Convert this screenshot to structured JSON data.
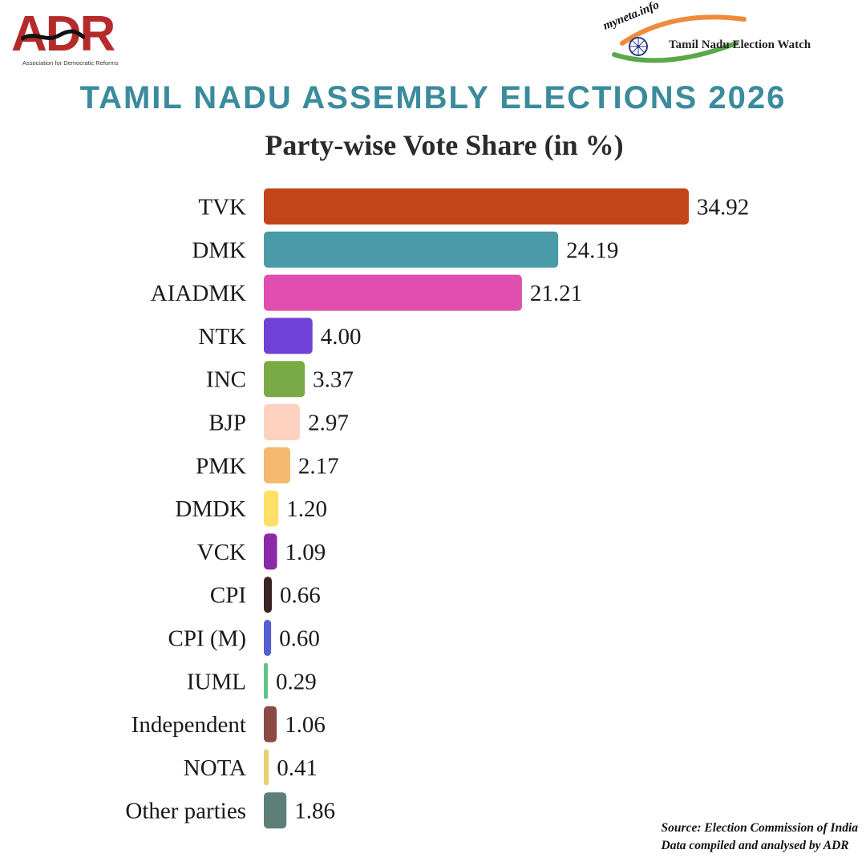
{
  "header": {
    "adr_logo_text": "ADR",
    "adr_tagline": "Association for Democratic Reforms",
    "myneta_text": "myneta.info",
    "election_watch_text": "Tamil Nadu Election Watch"
  },
  "chart_data": {
    "type": "bar",
    "orientation": "horizontal",
    "title": "TAMIL NADU ASSEMBLY ELECTIONS 2026",
    "subtitle": "Party-wise Vote Share (in %)",
    "categories": [
      "TVK",
      "DMK",
      "AIADMK",
      "NTK",
      "INC",
      "BJP",
      "PMK",
      "DMDK",
      "VCK",
      "CPI",
      "CPI (M)",
      "IUML",
      "Independent",
      "NOTA",
      "Other parties"
    ],
    "values": [
      34.92,
      24.19,
      21.21,
      4.0,
      3.37,
      2.97,
      2.17,
      1.2,
      1.09,
      0.66,
      0.6,
      0.29,
      1.06,
      0.41,
      1.86
    ],
    "value_labels": [
      "34.92",
      "24.19",
      "21.21",
      "4.00",
      "3.37",
      "2.97",
      "2.17",
      "1.20",
      "1.09",
      "0.66",
      "0.60",
      "0.29",
      "1.06",
      "0.41",
      "1.86"
    ],
    "colors": [
      "#c14518",
      "#4a9ba8",
      "#e04faf",
      "#7140d6",
      "#7aaa45",
      "#ffd1c0",
      "#f4b86e",
      "#ffe066",
      "#8a2aa8",
      "#3a2424",
      "#5560d0",
      "#5ec48a",
      "#8c4a42",
      "#e6d072",
      "#5d7f78"
    ],
    "xlim": [
      0,
      34.92
    ],
    "grid": false,
    "legend": "none"
  },
  "footer": {
    "source_line": "Source: Election Commission of India",
    "compiled_line": "Data compiled and analysed by ADR"
  }
}
